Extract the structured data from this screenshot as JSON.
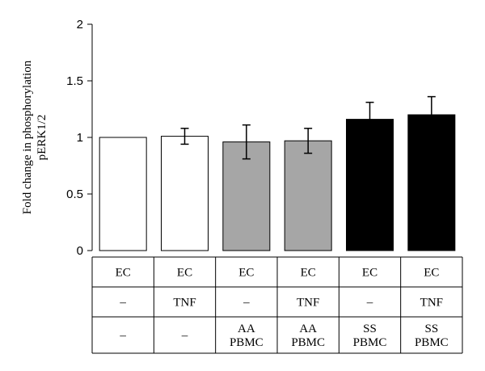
{
  "chart_data": {
    "type": "bar",
    "ylabel_line1": "Fold change in phosphorylation",
    "ylabel_line2": "pERK1/2",
    "ylim": [
      0,
      2
    ],
    "yticks": [
      "0",
      "0.5",
      "1",
      "1.5",
      "2"
    ],
    "ytick_values": [
      0,
      0.5,
      1,
      1.5,
      2
    ],
    "bars": [
      {
        "value": 1.0,
        "error": 0.0,
        "color": "#ffffff"
      },
      {
        "value": 1.01,
        "error": 0.07,
        "color": "#ffffff"
      },
      {
        "value": 0.96,
        "error": 0.15,
        "color": "#a6a6a6"
      },
      {
        "value": 0.97,
        "error": 0.11,
        "color": "#a6a6a6"
      },
      {
        "value": 1.16,
        "error": 0.15,
        "color": "#000000"
      },
      {
        "value": 1.2,
        "error": 0.16,
        "color": "#000000"
      }
    ],
    "table_rows": [
      [
        [
          "EC"
        ],
        [
          "EC"
        ],
        [
          "EC"
        ],
        [
          "EC"
        ],
        [
          "EC"
        ],
        [
          "EC"
        ]
      ],
      [
        [
          "–"
        ],
        [
          "TNF"
        ],
        [
          "–"
        ],
        [
          "TNF"
        ],
        [
          "–"
        ],
        [
          "TNF"
        ]
      ],
      [
        [
          "–"
        ],
        [
          "–"
        ],
        [
          "AA",
          "PBMC"
        ],
        [
          "AA",
          "PBMC"
        ],
        [
          "SS",
          "PBMC"
        ],
        [
          "SS",
          "PBMC"
        ]
      ]
    ]
  }
}
